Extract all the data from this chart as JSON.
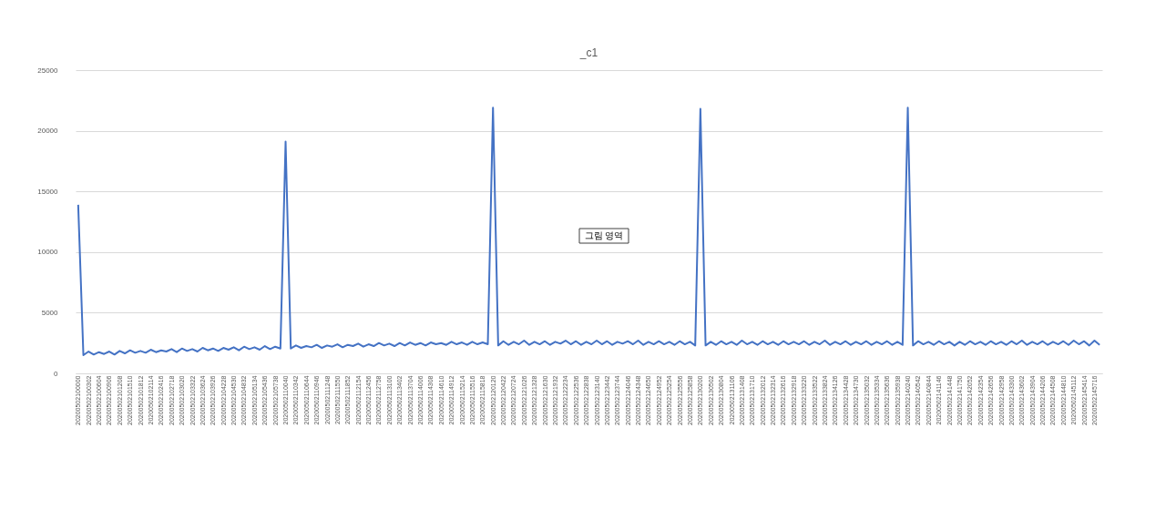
{
  "chart_data": {
    "type": "line",
    "title": "_c1",
    "categories": [
      "20200502100000",
      null,
      "20200502100302",
      null,
      "20200502100604",
      null,
      "20200502100906",
      null,
      "20200502101208",
      null,
      "20200502101510",
      null,
      "20200502101812",
      null,
      "20200502102114",
      null,
      "20200502102416",
      null,
      "20200502102718",
      null,
      "20200502103020",
      null,
      "20200502103322",
      null,
      "20200502103624",
      null,
      "20200502103926",
      null,
      "20200502104228",
      null,
      "20200502104530",
      null,
      "20200502104832",
      null,
      "20200502105134",
      null,
      "20200502105436",
      null,
      "20200502105738",
      null,
      "20200502110040",
      null,
      "20200502110342",
      null,
      "20200502110644",
      null,
      "20200502110946",
      null,
      "20200502111248",
      null,
      "20200502111550",
      null,
      "20200502111852",
      null,
      "20200502112154",
      null,
      "20200502112456",
      null,
      "20200502112758",
      null,
      "20200502113100",
      null,
      "20200502113402",
      null,
      "20200502113704",
      null,
      "20200502114006",
      null,
      "20200502114308",
      null,
      "20200502114610",
      null,
      "20200502114912",
      null,
      "20200502115214",
      null,
      "20200502115516",
      null,
      "20200502115818",
      null,
      "20200502120120",
      null,
      "20200502120422",
      null,
      "20200502120724",
      null,
      "20200502121026",
      null,
      "20200502121328",
      null,
      "20200502121630",
      null,
      "20200502121932",
      null,
      "20200502122234",
      null,
      "20200502122536",
      null,
      "20200502122838",
      null,
      "20200502123140",
      null,
      "20200502123442",
      null,
      "20200502123744",
      null,
      "20200502124046",
      null,
      "20200502124348",
      null,
      "20200502124650",
      null,
      "20200502124952",
      null,
      "20200502125254",
      null,
      "20200502125556",
      null,
      "20200502125858",
      null,
      "20200502130200",
      null,
      "20200502130502",
      null,
      "20200502130804",
      null,
      "20200502131106",
      null,
      "20200502131408",
      null,
      "20200502131710",
      null,
      "20200502132012",
      null,
      "20200502132314",
      null,
      "20200502132616",
      null,
      "20200502132918",
      null,
      "20200502133220",
      null,
      "20200502133522",
      null,
      "20200502133824",
      null,
      "20200502134126",
      null,
      "20200502134428",
      null,
      "20200502134730",
      null,
      "20200502135032",
      null,
      "20200502135334",
      null,
      "20200502135636",
      null,
      "20200502135938",
      null,
      "20200502140240",
      null,
      "20200502140542",
      null,
      "20200502140844",
      null,
      "20200502141146",
      null,
      "20200502141448",
      null,
      "20200502141750",
      null,
      "20200502142052",
      null,
      "20200502142354",
      null,
      "20200502142656",
      null,
      "20200502142958",
      null,
      "20200502143300",
      null,
      "20200502143602",
      null,
      "20200502143904",
      null,
      "20200502144206",
      null,
      "20200502144508",
      null,
      "20200502144810",
      null,
      "20200502145112",
      null,
      "20200502145414",
      null,
      "20200502145716",
      null
    ],
    "series": [
      {
        "color": "#4472c4",
        "values": [
          13900,
          1500,
          1800,
          1550,
          1750,
          1600,
          1800,
          1550,
          1850,
          1650,
          1900,
          1700,
          1850,
          1700,
          1950,
          1750,
          1900,
          1800,
          2000,
          1750,
          2050,
          1850,
          2000,
          1800,
          2100,
          1900,
          2050,
          1850,
          2100,
          1950,
          2150,
          1900,
          2200,
          2000,
          2150,
          1950,
          2250,
          2000,
          2200,
          2050,
          19100,
          2050,
          2300,
          2100,
          2250,
          2150,
          2350,
          2100,
          2300,
          2200,
          2400,
          2150,
          2350,
          2250,
          2450,
          2200,
          2400,
          2250,
          2500,
          2300,
          2450,
          2250,
          2500,
          2300,
          2550,
          2350,
          2500,
          2300,
          2550,
          2400,
          2500,
          2350,
          2600,
          2400,
          2550,
          2350,
          2600,
          2400,
          2550,
          2400,
          21900,
          2300,
          2650,
          2350,
          2600,
          2400,
          2700,
          2350,
          2600,
          2400,
          2650,
          2350,
          2600,
          2450,
          2700,
          2400,
          2650,
          2350,
          2600,
          2400,
          2700,
          2400,
          2650,
          2350,
          2600,
          2450,
          2650,
          2400,
          2700,
          2350,
          2600,
          2400,
          2650,
          2400,
          2600,
          2350,
          2650,
          2400,
          2600,
          2300,
          21800,
          2300,
          2600,
          2350,
          2650,
          2400,
          2600,
          2350,
          2700,
          2400,
          2600,
          2350,
          2650,
          2400,
          2600,
          2350,
          2650,
          2400,
          2600,
          2400,
          2650,
          2350,
          2600,
          2400,
          2700,
          2350,
          2600,
          2400,
          2650,
          2350,
          2600,
          2400,
          2650,
          2350,
          2600,
          2400,
          2650,
          2350,
          2600,
          2350,
          21900,
          2300,
          2650,
          2400,
          2600,
          2350,
          2650,
          2400,
          2600,
          2300,
          2600,
          2350,
          2650,
          2400,
          2600,
          2350,
          2650,
          2400,
          2600,
          2350,
          2650,
          2400,
          2700,
          2350,
          2600,
          2400,
          2650,
          2350,
          2600,
          2400,
          2650,
          2350,
          2700,
          2400,
          2650,
          2300,
          2700,
          2350
        ]
      }
    ],
    "ylim": [
      0,
      25000
    ],
    "yticks": [
      0,
      5000,
      10000,
      15000,
      20000,
      25000
    ],
    "grid": "y",
    "marker": "none",
    "line_style": "solid",
    "annotations": [
      "그림 영역"
    ]
  }
}
